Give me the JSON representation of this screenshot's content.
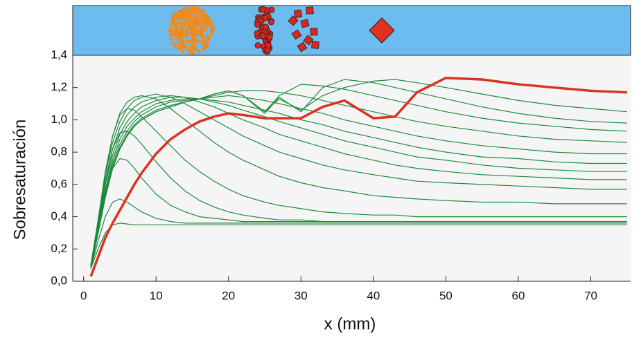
{
  "chart_data": {
    "type": "line",
    "xlabel": "x (mm)",
    "ylabel": "Sobresaturación",
    "xlim": [
      -1.5,
      75.5
    ],
    "ylim": [
      0,
      1.4
    ],
    "xticks": [
      0,
      10,
      20,
      30,
      40,
      50,
      60,
      70
    ],
    "yticks": [
      {
        "value": 0,
        "label": "0,0"
      },
      {
        "value": 0.2,
        "label": "0,2"
      },
      {
        "value": 0.4,
        "label": "0,4"
      },
      {
        "value": 0.6,
        "label": "0,6"
      },
      {
        "value": 0.8,
        "label": "0,8"
      },
      {
        "value": 1.0,
        "label": "1,0"
      },
      {
        "value": 1.2,
        "label": "1,2"
      },
      {
        "value": 1.4,
        "label": "1,4"
      }
    ],
    "x": [
      1,
      2,
      3,
      4,
      5,
      6,
      7,
      8,
      10,
      12,
      14,
      16,
      18,
      20,
      22,
      25,
      27,
      30,
      33,
      36,
      40,
      43,
      46,
      50,
      55,
      60,
      65,
      70,
      75
    ],
    "series": [
      {
        "color": "#1b8a3c",
        "values": [
          0.08,
          0.2,
          0.3,
          0.35,
          0.36,
          0.355,
          0.35,
          0.35,
          0.35,
          0.35,
          0.35,
          0.35,
          0.35,
          0.35,
          0.35,
          0.35,
          0.35,
          0.35,
          0.35,
          0.35,
          0.35,
          0.35,
          0.35,
          0.35,
          0.35,
          0.35,
          0.35,
          0.35,
          0.35
        ]
      },
      {
        "color": "#1b8a3c",
        "values": [
          0.08,
          0.25,
          0.4,
          0.49,
          0.51,
          0.49,
          0.46,
          0.43,
          0.39,
          0.37,
          0.36,
          0.36,
          0.36,
          0.36,
          0.36,
          0.36,
          0.36,
          0.36,
          0.36,
          0.36,
          0.36,
          0.36,
          0.36,
          0.36,
          0.36,
          0.36,
          0.36,
          0.36,
          0.36
        ]
      },
      {
        "color": "#1b8a3c",
        "values": [
          0.09,
          0.3,
          0.53,
          0.7,
          0.76,
          0.75,
          0.7,
          0.64,
          0.54,
          0.47,
          0.43,
          0.4,
          0.39,
          0.38,
          0.37,
          0.37,
          0.37,
          0.37,
          0.37,
          0.37,
          0.37,
          0.37,
          0.37,
          0.37,
          0.37,
          0.37,
          0.37,
          0.37,
          0.37
        ]
      },
      {
        "color": "#1b8a3c",
        "values": [
          0.09,
          0.33,
          0.6,
          0.82,
          0.92,
          0.93,
          0.9,
          0.85,
          0.74,
          0.64,
          0.56,
          0.5,
          0.46,
          0.43,
          0.41,
          0.39,
          0.38,
          0.38,
          0.37,
          0.37,
          0.37,
          0.37,
          0.37,
          0.37,
          0.37,
          0.37,
          0.37,
          0.37,
          0.37
        ]
      },
      {
        "color": "#1b8a3c",
        "values": [
          0.1,
          0.35,
          0.66,
          0.9,
          1.03,
          1.07,
          1.06,
          1.02,
          0.93,
          0.84,
          0.75,
          0.68,
          0.62,
          0.57,
          0.53,
          0.49,
          0.47,
          0.45,
          0.43,
          0.42,
          0.41,
          0.41,
          0.4,
          0.4,
          0.4,
          0.4,
          0.4,
          0.4,
          0.4
        ]
      },
      {
        "color": "#1b8a3c",
        "values": [
          0.1,
          0.38,
          0.68,
          0.9,
          1.04,
          1.11,
          1.14,
          1.15,
          1.13,
          1.07,
          1.0,
          0.93,
          0.86,
          0.8,
          0.75,
          0.69,
          0.65,
          0.61,
          0.58,
          0.56,
          0.53,
          0.52,
          0.51,
          0.5,
          0.49,
          0.49,
          0.48,
          0.48,
          0.48
        ]
      },
      {
        "color": "#1b8a3c",
        "values": [
          0.1,
          0.38,
          0.66,
          0.86,
          0.99,
          1.07,
          1.12,
          1.14,
          1.16,
          1.14,
          1.1,
          1.05,
          1.0,
          0.95,
          0.9,
          0.84,
          0.8,
          0.76,
          0.72,
          0.69,
          0.66,
          0.64,
          0.62,
          0.61,
          0.6,
          0.59,
          0.58,
          0.57,
          0.57
        ]
      },
      {
        "color": "#1b8a3c",
        "values": [
          0.1,
          0.37,
          0.63,
          0.82,
          0.95,
          1.03,
          1.08,
          1.11,
          1.14,
          1.15,
          1.14,
          1.11,
          1.08,
          1.04,
          1.0,
          0.95,
          0.91,
          0.87,
          0.83,
          0.79,
          0.75,
          0.72,
          0.7,
          0.68,
          0.66,
          0.65,
          0.64,
          0.63,
          0.63
        ]
      },
      {
        "color": "#1b8a3c",
        "values": [
          0.09,
          0.35,
          0.6,
          0.78,
          0.91,
          0.99,
          1.04,
          1.08,
          1.12,
          1.14,
          1.14,
          1.13,
          1.11,
          1.09,
          1.06,
          1.02,
          0.99,
          0.95,
          0.91,
          0.87,
          0.83,
          0.8,
          0.77,
          0.75,
          0.72,
          0.7,
          0.69,
          0.68,
          0.68
        ]
      },
      {
        "color": "#1b8a3c",
        "values": [
          0.09,
          0.33,
          0.57,
          0.75,
          0.88,
          0.96,
          1.01,
          1.05,
          1.1,
          1.12,
          1.13,
          1.13,
          1.12,
          1.11,
          1.09,
          1.06,
          1.04,
          1.0,
          0.97,
          0.93,
          0.89,
          0.86,
          0.83,
          0.8,
          0.77,
          0.76,
          0.74,
          0.73,
          0.73
        ]
      },
      {
        "color": "#1b8a3c",
        "values": [
          0.09,
          0.32,
          0.55,
          0.73,
          0.85,
          0.93,
          0.99,
          1.03,
          1.08,
          1.11,
          1.12,
          1.13,
          1.14,
          1.15,
          1.14,
          1.12,
          1.1,
          1.07,
          1.04,
          1.0,
          0.96,
          0.93,
          0.9,
          0.87,
          0.84,
          0.82,
          0.8,
          0.79,
          0.79
        ]
      },
      {
        "color": "#1b8a3c",
        "values": [
          0.08,
          0.3,
          0.53,
          0.71,
          0.83,
          0.91,
          0.97,
          1.01,
          1.06,
          1.09,
          1.11,
          1.13,
          1.15,
          1.17,
          1.18,
          1.18,
          1.17,
          1.15,
          1.12,
          1.09,
          1.05,
          1.02,
          0.99,
          0.96,
          0.93,
          0.9,
          0.88,
          0.87,
          0.86
        ]
      },
      {
        "color": "#1b8a3c",
        "values": [
          0.08,
          0.3,
          0.52,
          0.7,
          0.82,
          0.9,
          0.96,
          1.0,
          1.05,
          1.08,
          1.11,
          1.13,
          1.16,
          1.18,
          1.15,
          1.05,
          1.15,
          1.22,
          1.21,
          1.19,
          1.15,
          1.12,
          1.09,
          1.05,
          1.01,
          0.98,
          0.96,
          0.94,
          0.93
        ]
      },
      {
        "color": "#1b8a3c",
        "values": [
          0.08,
          0.3,
          0.52,
          0.7,
          0.82,
          0.9,
          0.96,
          1.0,
          1.05,
          1.08,
          1.11,
          1.13,
          1.16,
          1.18,
          1.15,
          1.04,
          1.14,
          1.05,
          1.2,
          1.25,
          1.23,
          1.2,
          1.17,
          1.13,
          1.08,
          1.04,
          1.01,
          0.99,
          0.98
        ]
      },
      {
        "color": "#1b8a3c",
        "values": [
          0.08,
          0.3,
          0.52,
          0.7,
          0.82,
          0.9,
          0.96,
          1.0,
          1.05,
          1.08,
          1.11,
          1.13,
          1.16,
          1.18,
          1.15,
          1.05,
          1.13,
          1.06,
          1.15,
          1.2,
          1.24,
          1.25,
          1.23,
          1.2,
          1.16,
          1.12,
          1.09,
          1.07,
          1.05
        ]
      },
      {
        "color": "#d93322",
        "width": 3.5,
        "values": [
          0.03,
          0.15,
          0.27,
          0.36,
          0.44,
          0.52,
          0.6,
          0.67,
          0.79,
          0.88,
          0.94,
          0.99,
          1.02,
          1.04,
          1.03,
          1.01,
          1.01,
          1.01,
          1.08,
          1.12,
          1.01,
          1.02,
          1.17,
          1.26,
          1.25,
          1.22,
          1.2,
          1.18,
          1.17
        ]
      }
    ]
  }
}
